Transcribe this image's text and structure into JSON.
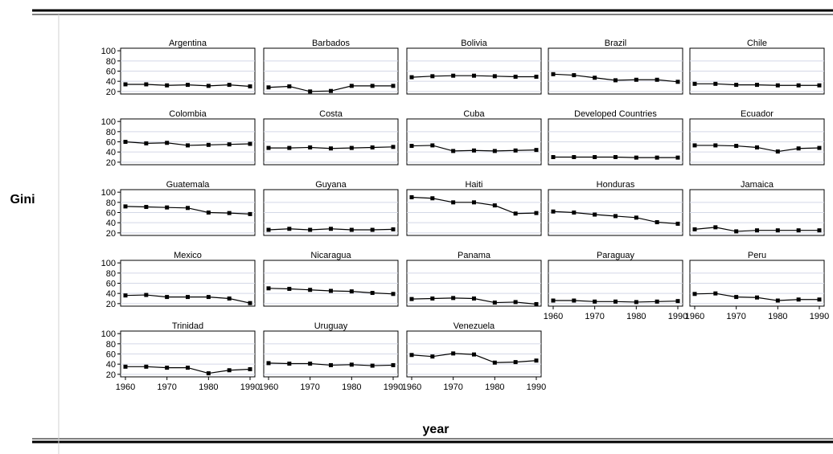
{
  "ylabel": "Gini",
  "xlabel": "year",
  "x_ticks": [
    "1960",
    "1970",
    "1980",
    "1990"
  ],
  "chart_data": {
    "type": "line",
    "title": "",
    "xlabel": "year",
    "ylabel": "Gini",
    "xlim": [
      1960,
      1990
    ],
    "ylim": [
      15,
      105
    ],
    "x": [
      1960,
      1965,
      1970,
      1975,
      1980,
      1985,
      1990
    ],
    "panels": [
      {
        "name": "Argentina",
        "values": [
          34,
          34,
          32,
          33,
          31,
          33,
          30
        ],
        "yticks": [
          20,
          40,
          60,
          80,
          100
        ]
      },
      {
        "name": "Barbados",
        "values": [
          28,
          30,
          20,
          21,
          31,
          31,
          31
        ]
      },
      {
        "name": "Bolivia",
        "values": [
          48,
          50,
          51,
          51,
          50,
          49,
          49
        ]
      },
      {
        "name": "Brazil",
        "values": [
          54,
          52,
          47,
          42,
          43,
          43,
          39
        ]
      },
      {
        "name": "Chile",
        "values": [
          35,
          35,
          33,
          33,
          32,
          32,
          32
        ]
      },
      {
        "name": "Colombia",
        "values": [
          60,
          57,
          58,
          53,
          54,
          55,
          56
        ],
        "yticks": [
          20,
          40,
          60,
          80,
          100
        ]
      },
      {
        "name": "Costa",
        "values": [
          48,
          48,
          49,
          47,
          48,
          49,
          50
        ]
      },
      {
        "name": "Cuba",
        "values": [
          52,
          53,
          42,
          43,
          42,
          43,
          44
        ]
      },
      {
        "name": "Developed Countries",
        "values": [
          30,
          30,
          30,
          30,
          29,
          29,
          29
        ]
      },
      {
        "name": "Ecuador",
        "values": [
          53,
          53,
          52,
          49,
          41,
          47,
          48
        ]
      },
      {
        "name": "Guatemala",
        "values": [
          72,
          71,
          70,
          69,
          60,
          59,
          57
        ],
        "yticks": [
          20,
          40,
          60,
          80,
          100
        ]
      },
      {
        "name": "Guyana",
        "values": [
          26,
          28,
          26,
          28,
          26,
          26,
          27
        ]
      },
      {
        "name": "Haiti",
        "values": [
          90,
          88,
          80,
          80,
          74,
          58,
          59
        ]
      },
      {
        "name": "Honduras",
        "values": [
          62,
          60,
          56,
          53,
          50,
          41,
          38
        ]
      },
      {
        "name": "Jamaica",
        "values": [
          27,
          31,
          23,
          25,
          25,
          25,
          25
        ]
      },
      {
        "name": "Mexico",
        "values": [
          36,
          37,
          33,
          33,
          33,
          30,
          21
        ],
        "yticks": [
          20,
          40,
          60,
          80,
          100
        ]
      },
      {
        "name": "Nicaragua",
        "values": [
          50,
          49,
          47,
          45,
          44,
          41,
          39
        ]
      },
      {
        "name": "Panama",
        "values": [
          29,
          30,
          31,
          30,
          22,
          23,
          19
        ]
      },
      {
        "name": "Paraguay",
        "values": [
          26,
          26,
          24,
          24,
          23,
          24,
          25
        ]
      },
      {
        "name": "Peru",
        "values": [
          39,
          40,
          33,
          32,
          26,
          28,
          28
        ]
      },
      {
        "name": "Trinidad",
        "values": [
          35,
          35,
          33,
          33,
          22,
          28,
          30
        ],
        "yticks": [
          20,
          40,
          60,
          80,
          100
        ]
      },
      {
        "name": "Uruguay",
        "values": [
          42,
          41,
          41,
          38,
          39,
          37,
          38
        ]
      },
      {
        "name": "Venezuela",
        "values": [
          58,
          55,
          61,
          59,
          43,
          44,
          47
        ]
      }
    ]
  }
}
